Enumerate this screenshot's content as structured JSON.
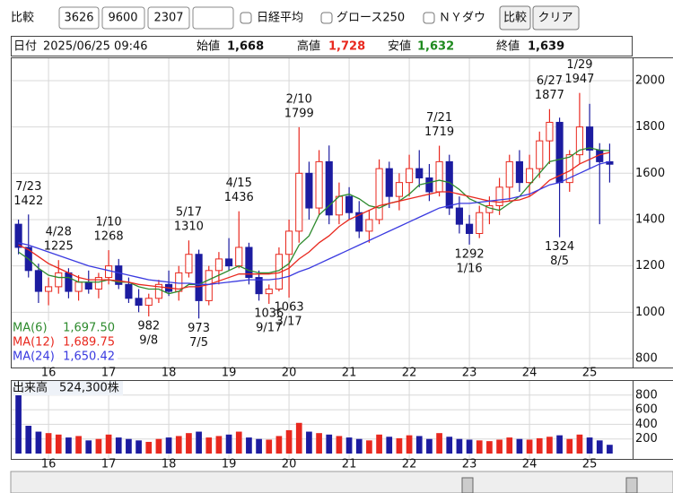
{
  "toolbar": {
    "compare_label": "比較",
    "codes": [
      "3626",
      "9600",
      "2307",
      ""
    ],
    "checkboxes": [
      "日経平均",
      "グロース250",
      "ＮＹダウ"
    ],
    "buttons": [
      "比較",
      "クリア"
    ]
  },
  "quote": {
    "date_label": "日付",
    "datetime": "2025/06/25 09:46",
    "open_label": "始値",
    "open": "1,668",
    "high_label": "高値",
    "high": "1,728",
    "low_label": "安値",
    "low": "1,632",
    "close_label": "終値",
    "close": "1,639"
  },
  "chart_data": {
    "type": "candlestick",
    "up_color": "#e8281e",
    "down_color": "#1c1ca0",
    "grid": true,
    "categories": [
      null,
      null,
      null,
      "16",
      null,
      null,
      null,
      null,
      null,
      "17",
      null,
      null,
      null,
      null,
      null,
      "18",
      null,
      null,
      null,
      null,
      null,
      "19",
      null,
      null,
      null,
      null,
      null,
      "20",
      null,
      null,
      null,
      null,
      null,
      "21",
      null,
      null,
      null,
      null,
      null,
      "22",
      null,
      null,
      null,
      null,
      null,
      "23",
      null,
      null,
      null,
      null,
      null,
      "24",
      null,
      null,
      null,
      null,
      null,
      "25",
      null,
      null
    ],
    "open": [
      1380,
      1280,
      1180,
      1090,
      1110,
      1170,
      1090,
      1130,
      1100,
      1150,
      1200,
      1120,
      1060,
      1030,
      1060,
      1120,
      1090,
      1170,
      1250,
      1050,
      1180,
      1230,
      1200,
      1280,
      1150,
      1080,
      1100,
      1250,
      1350,
      1600,
      1450,
      1650,
      1420,
      1500,
      1430,
      1350,
      1400,
      1620,
      1500,
      1560,
      1620,
      1580,
      1520,
      1650,
      1450,
      1380,
      1340,
      1430,
      1460,
      1540,
      1650,
      1560,
      1620,
      1740,
      1820,
      1560,
      1680,
      1800,
      1700,
      1650
    ],
    "high": [
      1400,
      1422,
      1210,
      1150,
      1225,
      1190,
      1160,
      1180,
      1170,
      1268,
      1230,
      1150,
      1100,
      1080,
      1140,
      1180,
      1200,
      1310,
      1270,
      1200,
      1260,
      1320,
      1436,
      1300,
      1180,
      1120,
      1280,
      1400,
      1799,
      1650,
      1700,
      1720,
      1560,
      1540,
      1480,
      1440,
      1660,
      1650,
      1600,
      1680,
      1700,
      1640,
      1719,
      1680,
      1500,
      1420,
      1460,
      1500,
      1580,
      1680,
      1700,
      1680,
      1780,
      1877,
      1840,
      1700,
      1947,
      1900,
      1730,
      1728
    ],
    "low": [
      1250,
      1150,
      1040,
      1030,
      1080,
      1060,
      1050,
      1080,
      1060,
      1120,
      1100,
      1040,
      1000,
      982,
      1040,
      1070,
      1050,
      1150,
      973,
      1030,
      1120,
      1180,
      1190,
      1120,
      1050,
      1036,
      1090,
      1063,
      1300,
      1400,
      1420,
      1380,
      1380,
      1400,
      1320,
      1300,
      1380,
      1450,
      1440,
      1500,
      1540,
      1480,
      1500,
      1420,
      1340,
      1292,
      1320,
      1380,
      1420,
      1480,
      1520,
      1500,
      1580,
      1640,
      1324,
      1520,
      1640,
      1620,
      1380,
      1560
    ],
    "close": [
      1280,
      1180,
      1090,
      1110,
      1170,
      1090,
      1130,
      1100,
      1150,
      1200,
      1120,
      1060,
      1030,
      1060,
      1120,
      1090,
      1170,
      1250,
      1050,
      1180,
      1230,
      1200,
      1280,
      1150,
      1080,
      1100,
      1250,
      1350,
      1600,
      1450,
      1650,
      1420,
      1500,
      1430,
      1350,
      1400,
      1620,
      1500,
      1560,
      1620,
      1580,
      1520,
      1650,
      1450,
      1380,
      1340,
      1430,
      1460,
      1540,
      1650,
      1560,
      1620,
      1740,
      1820,
      1560,
      1680,
      1800,
      1700,
      1650,
      1639
    ],
    "series": [
      {
        "name": "MA(6)",
        "color": "#2e8b2e",
        "last_label": "1,697.50",
        "values": [
          1260,
          1230,
          1190,
          1160,
          1150,
          1150,
          1130,
          1130,
          1130,
          1140,
          1130,
          1130,
          1110,
          1100,
          1100,
          1080,
          1090,
          1120,
          1120,
          1140,
          1160,
          1180,
          1200,
          1180,
          1170,
          1170,
          1180,
          1210,
          1290,
          1330,
          1420,
          1460,
          1500,
          1510,
          1490,
          1460,
          1450,
          1470,
          1480,
          1510,
          1550,
          1560,
          1570,
          1560,
          1530,
          1490,
          1470,
          1450,
          1440,
          1470,
          1500,
          1550,
          1600,
          1650,
          1660,
          1670,
          1700,
          1710,
          1700,
          1697.5
        ]
      },
      {
        "name": "MA(12)",
        "color": "#e8281e",
        "last_label": "1,689.75",
        "values": [
          1290,
          1270,
          1240,
          1210,
          1190,
          1170,
          1150,
          1140,
          1140,
          1140,
          1135,
          1130,
          1120,
          1115,
          1110,
          1105,
          1100,
          1110,
          1110,
          1120,
          1135,
          1150,
          1165,
          1165,
          1165,
          1165,
          1170,
          1190,
          1230,
          1260,
          1300,
          1330,
          1370,
          1400,
          1420,
          1440,
          1460,
          1470,
          1480,
          1490,
          1500,
          1510,
          1520,
          1520,
          1510,
          1500,
          1490,
          1480,
          1475,
          1480,
          1485,
          1500,
          1530,
          1570,
          1590,
          1610,
          1640,
          1660,
          1680,
          1689.75
        ]
      },
      {
        "name": "MA(24)",
        "color": "#3a3ae0",
        "last_label": "1,650.42",
        "values": [
          1300,
          1290,
          1275,
          1260,
          1245,
          1230,
          1215,
          1200,
          1190,
          1180,
          1170,
          1160,
          1150,
          1140,
          1135,
          1130,
          1125,
          1125,
          1120,
          1120,
          1125,
          1130,
          1135,
          1140,
          1140,
          1140,
          1145,
          1155,
          1175,
          1190,
          1210,
          1230,
          1250,
          1270,
          1290,
          1310,
          1330,
          1350,
          1370,
          1390,
          1410,
          1430,
          1450,
          1460,
          1470,
          1470,
          1475,
          1480,
          1485,
          1490,
          1500,
          1510,
          1530,
          1550,
          1560,
          1580,
          1600,
          1620,
          1640,
          1650.42
        ]
      }
    ],
    "ylim": [
      769,
      2085
    ],
    "yticks": [
      800,
      1000,
      1200,
      1400,
      1600,
      1800,
      2000
    ],
    "annotations": [
      {
        "date": "7/23",
        "value": 1422
      },
      {
        "date": "4/28",
        "value": 1225
      },
      {
        "date": "1/10",
        "value": 1268
      },
      {
        "date": "9/8",
        "value": 982
      },
      {
        "date": "5/17",
        "value": 1310
      },
      {
        "date": "7/5",
        "value": 973
      },
      {
        "date": "4/15",
        "value": 1436
      },
      {
        "date": "9/17",
        "value": 1036
      },
      {
        "date": "3/17",
        "value": 1063
      },
      {
        "date": "2/10",
        "value": 1799
      },
      {
        "date": "7/21",
        "value": 1719
      },
      {
        "date": "1/16",
        "value": 1292
      },
      {
        "date": "6/27",
        "value": 1877
      },
      {
        "date": "8/5",
        "value": 1324
      },
      {
        "date": "1/29",
        "value": 1947
      }
    ],
    "volume": {
      "title": "出来高",
      "label": "524,300株",
      "ylim": [
        0,
        1000
      ],
      "yticks": [
        200,
        400,
        600,
        800
      ],
      "values": [
        810,
        380,
        300,
        280,
        260,
        220,
        240,
        180,
        200,
        260,
        220,
        200,
        180,
        160,
        200,
        220,
        240,
        280,
        300,
        220,
        240,
        260,
        300,
        220,
        200,
        190,
        240,
        320,
        420,
        300,
        280,
        260,
        240,
        220,
        200,
        180,
        260,
        230,
        210,
        250,
        240,
        200,
        280,
        230,
        200,
        190,
        180,
        170,
        190,
        220,
        200,
        190,
        210,
        230,
        250,
        200,
        260,
        220,
        180,
        120
      ]
    }
  }
}
